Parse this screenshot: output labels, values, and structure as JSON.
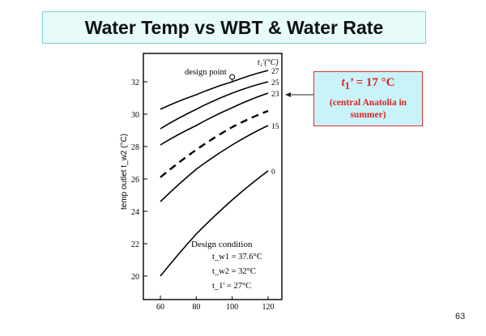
{
  "slide": {
    "title": "Water Temp vs WBT & Water Rate",
    "page_number": "63"
  },
  "callout": {
    "sub": "1",
    "value": "’ = 17 °C",
    "note": "(central Anatolia in summer)"
  },
  "design_condition": {
    "heading": "Design condition",
    "lines": [
      "t_w1 = 37.6°C",
      "t_w2 = 32°C",
      "t_1' = 27°C"
    ]
  },
  "colors": {
    "title_bg": "#e7fbfb",
    "callout_bg": "#c9f3f8",
    "callout_border": "#dd3333",
    "callout_text": "#dd2222",
    "curve": "#000000"
  },
  "chart_data": {
    "type": "line",
    "title": "",
    "ylabel": "temp outlet t_w2 (°C)",
    "xlabel": "",
    "xlim": [
      60,
      120
    ],
    "ylim": [
      19,
      34
    ],
    "x_ticks": [
      60,
      80,
      100,
      120
    ],
    "y_ticks": [
      20,
      22,
      24,
      26,
      28,
      30,
      32
    ],
    "grid": false,
    "curve_label_header": "t₁'(°C)",
    "design_point_label": "design point",
    "design_point": {
      "x": 100,
      "y": 32
    },
    "series": [
      {
        "name": "27",
        "style": "solid",
        "x": [
          60,
          80,
          100,
          120
        ],
        "y": [
          30.3,
          31.2,
          32.0,
          32.7
        ]
      },
      {
        "name": "25",
        "style": "solid",
        "x": [
          60,
          80,
          100,
          120
        ],
        "y": [
          29.1,
          30.3,
          31.3,
          32.0
        ]
      },
      {
        "name": "23",
        "style": "solid",
        "x": [
          60,
          80,
          100,
          120
        ],
        "y": [
          28.1,
          29.3,
          30.4,
          31.3
        ]
      },
      {
        "name": "",
        "style": "dashed",
        "x": [
          60,
          80,
          100,
          120
        ],
        "y": [
          26.1,
          27.8,
          29.2,
          30.2
        ]
      },
      {
        "name": "15",
        "style": "solid",
        "x": [
          60,
          80,
          100,
          120
        ],
        "y": [
          24.6,
          26.6,
          28.1,
          29.3
        ]
      },
      {
        "name": "0",
        "style": "solid",
        "x": [
          60,
          80,
          100,
          120
        ],
        "y": [
          20.0,
          22.6,
          24.7,
          26.5
        ]
      }
    ]
  }
}
